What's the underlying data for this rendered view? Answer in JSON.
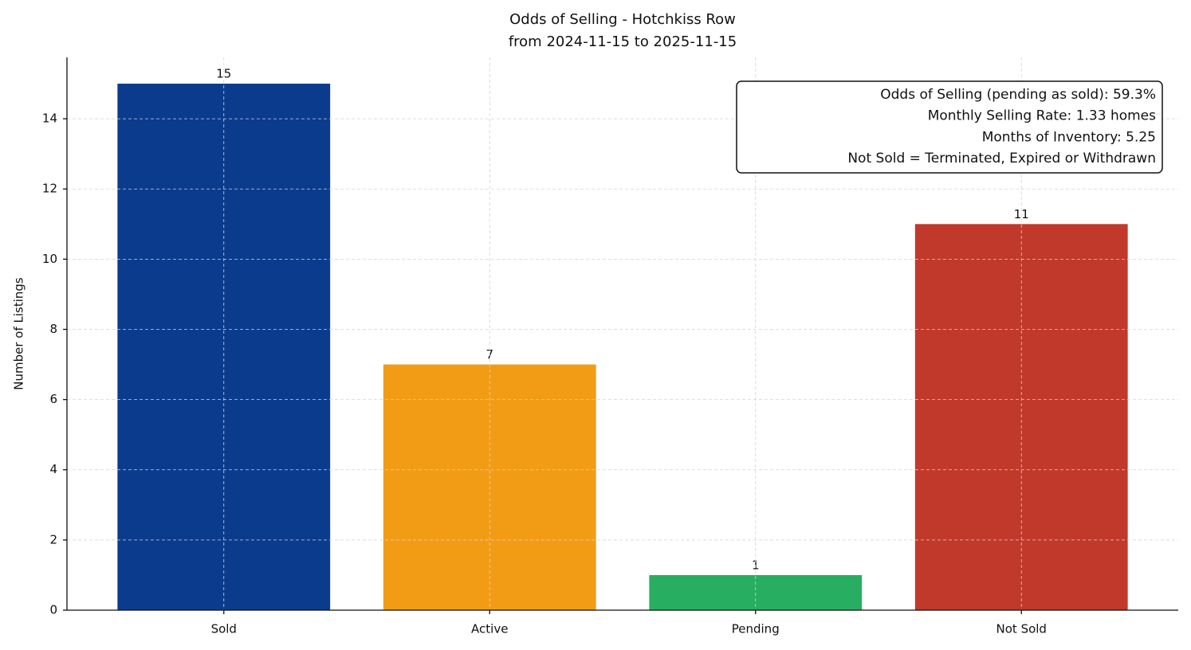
{
  "chart_data": {
    "type": "bar",
    "title": [
      "Odds of Selling - Hotchkiss Row",
      "from 2024-11-15 to 2025-11-15"
    ],
    "y_label": "Number of Listings",
    "categories": [
      "Sold",
      "Active",
      "Pending",
      "Not Sold"
    ],
    "values": [
      15,
      7,
      1,
      11
    ],
    "colors": [
      "#0b3b8c",
      "#f29c16",
      "#27ae60",
      "#c0392b"
    ],
    "ylim": [
      0,
      15.75
    ],
    "yticks": [
      0,
      2,
      4,
      6,
      8,
      10,
      12,
      14
    ],
    "grid": true,
    "annotation": [
      "Odds of Selling (pending as sold): 59.3%",
      "Monthly Selling Rate: 1.33 homes",
      "Months of Inventory: 5.25",
      "Not Sold = Terminated, Expired or Withdrawn"
    ]
  }
}
